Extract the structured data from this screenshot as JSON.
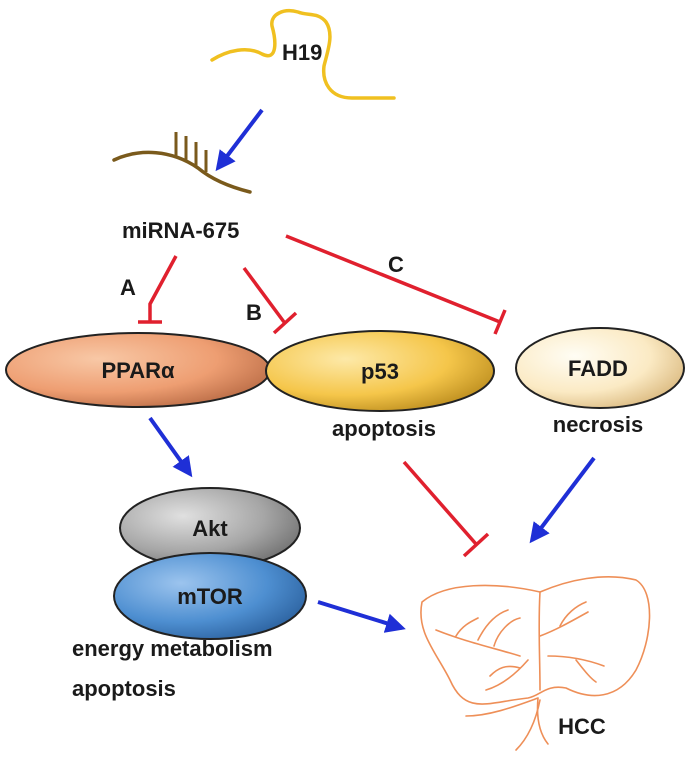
{
  "nodes": {
    "h19": "H19",
    "mirna": "miRNA-675",
    "ppara": "PPARα",
    "p53": "p53",
    "fadd": "FADD",
    "akt": "Akt",
    "mtor": "mTOR",
    "hcc": "HCC"
  },
  "annotations": {
    "p53_effect": "apoptosis",
    "fadd_effect": "necrosis",
    "mtor_effect_1": "energy metabolism",
    "mtor_effect_2": "apoptosis"
  },
  "pathway_tags": {
    "a": "A",
    "b": "B",
    "c": "C"
  },
  "colors": {
    "activation_arrow": "#1f2fd6",
    "inhibition_line": "#e0202e",
    "h19_strand": "#f0c020",
    "mirna_strand": "#7a5a1c",
    "ppara_fill": "#ee9e72",
    "p53_fill": "#f5c64a",
    "fadd_fill": "#fbeac4",
    "akt_fill": "#a6a6a6",
    "mtor_fill": "#4e8fd1",
    "liver_outline": "#ee8f58"
  }
}
